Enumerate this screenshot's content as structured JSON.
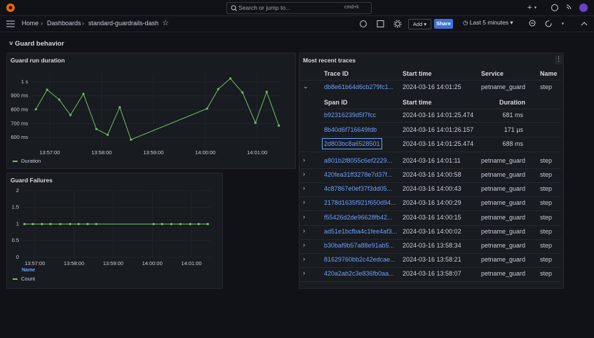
{
  "header": {
    "search_placeholder": "Search or jump to...",
    "search_shortcut": "cmd+k",
    "breadcrumbs": [
      "Home",
      "Dashboards",
      "standard-guardrails-dash"
    ],
    "add_button": "Add",
    "share_button": "Share",
    "time_range": "Last 5 minutes"
  },
  "row_title": "Guard behavior",
  "chart_data": [
    {
      "type": "line",
      "title": "Guard run duration",
      "x": [
        "13:56:44",
        "13:56:57",
        "13:57:11",
        "13:57:24",
        "13:57:39",
        "13:57:54",
        "13:58:07",
        "13:58:21",
        "13:58:34",
        "14:00:02",
        "14:00:15",
        "14:00:29",
        "14:00:43",
        "14:00:58",
        "14:01:11",
        "14:01:25"
      ],
      "series": [
        {
          "name": "Duration",
          "color": "#73bf69",
          "values": [
            803,
            944,
            873,
            762,
            914,
            661,
            620,
            818,
            585,
            808,
            949,
            1025,
            924,
            706,
            929,
            686
          ]
        }
      ],
      "xlim": [
        "13:56:39",
        "14:01:27"
      ],
      "xticks": [
        "13:57:00",
        "13:58:00",
        "13:59:00",
        "14:00:00",
        "14:01:00"
      ],
      "ylim": [
        530,
        1060
      ],
      "yticks": [
        {
          "value": 600,
          "label": "600 ms"
        },
        {
          "value": 700,
          "label": "700 ms"
        },
        {
          "value": 800,
          "label": "800 ms"
        },
        {
          "value": 900,
          "label": "900 ms"
        },
        {
          "value": 1000,
          "label": "1 s"
        }
      ],
      "grid": true
    },
    {
      "type": "line",
      "title": "Guard Failures",
      "x": [
        "13:56:44",
        "13:56:57",
        "13:57:11",
        "13:57:24",
        "13:57:39",
        "13:57:54",
        "13:58:07",
        "13:58:21",
        "13:58:34",
        "14:00:02",
        "14:00:15",
        "14:00:29",
        "14:00:43",
        "14:00:58",
        "14:01:11",
        "14:01:25"
      ],
      "series": [
        {
          "name": "Count",
          "color": "#73bf69",
          "values": [
            1,
            1,
            1,
            1,
            1,
            1,
            1,
            1,
            1,
            1,
            1,
            1,
            1,
            1,
            1,
            1
          ]
        }
      ],
      "legend_title": "Name",
      "xlim": [
        "13:56:41",
        "14:01:29"
      ],
      "xticks": [
        "13:57:00",
        "13:58:00",
        "13:59:00",
        "14:00:00",
        "14:01:00"
      ],
      "ylim": [
        0,
        2
      ],
      "yticks": [
        0,
        0.5,
        1,
        1.5,
        2
      ],
      "grid": true
    }
  ],
  "traces": {
    "title": "Most recent traces",
    "columns": [
      "Trace ID",
      "Start time",
      "Service",
      "Name"
    ],
    "rows": [
      {
        "trace_id": "db8e61b64d6cb279fc1...",
        "start_time": "2024-03-16 14:01:25",
        "service": "petname_guard",
        "name": "step"
      },
      {
        "trace_id": "a801b2f8055c6ef2229...",
        "start_time": "2024-03-16 14:01:11",
        "service": "petname_guard",
        "name": "step"
      },
      {
        "trace_id": "420fea31ff3278e7d37f...",
        "start_time": "2024-03-16 14:00:58",
        "service": "petname_guard",
        "name": "step"
      },
      {
        "trace_id": "4c87867e0ef37f3dd05...",
        "start_time": "2024-03-16 14:00:43",
        "service": "petname_guard",
        "name": "step"
      },
      {
        "trace_id": "2178d1635f921f650d94...",
        "start_time": "2024-03-16 14:00:29",
        "service": "petname_guard",
        "name": "step"
      },
      {
        "trace_id": "f55426d2de96628fb42...",
        "start_time": "2024-03-16 14:00:15",
        "service": "petname_guard",
        "name": "step"
      },
      {
        "trace_id": "ad51e1bcfba4c1fee4af3...",
        "start_time": "2024-03-16 14:00:02",
        "service": "petname_guard",
        "name": "step"
      },
      {
        "trace_id": "b30baf9b57a88e91ab5...",
        "start_time": "2024-03-16 13:58:34",
        "service": "petname_guard",
        "name": "step"
      },
      {
        "trace_id": "81629760bb2c42edcae...",
        "start_time": "2024-03-16 13:58:21",
        "service": "petname_guard",
        "name": "step"
      },
      {
        "trace_id": "420a2ab2c3e836fb0aa...",
        "start_time": "2024-03-16 13:58:07",
        "service": "petname_guard",
        "name": "step"
      }
    ],
    "spans": {
      "columns": [
        "Span ID",
        "Start time",
        "Duration"
      ],
      "rows": [
        {
          "span_id": "b92316239d5f7fcc",
          "start_time": "2024-03-16 14:01:25.474",
          "duration": "681 ms"
        },
        {
          "span_id": "8b40d6f716649fdb",
          "start_time": "2024-03-16 14:01:26.157",
          "duration": "171 µs"
        },
        {
          "span_id": "2d803bc8a6528501",
          "start_time": "2024-03-16 14:01:25.474",
          "duration": "688 ms"
        }
      ]
    }
  }
}
